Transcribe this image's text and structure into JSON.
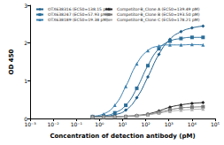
{
  "chart_data": {
    "type": "line",
    "x_label": "Concentration of detection antibody (pM)",
    "y_label": "OD 450",
    "log": "x",
    "grid": false,
    "legend": "top-left",
    "xlim": [
      0.001,
      100000
    ],
    "xticks": [
      {
        "value": 0.001,
        "label": "10⁻³"
      },
      {
        "value": 0.01,
        "label": "10⁻²"
      },
      {
        "value": 0.1,
        "label": "10⁻¹"
      },
      {
        "value": 1,
        "label": "10⁰"
      },
      {
        "value": 10,
        "label": "10¹"
      },
      {
        "value": 100,
        "label": "10²"
      },
      {
        "value": 1000,
        "label": "10³"
      },
      {
        "value": 10000,
        "label": "10⁴"
      },
      {
        "value": 100000,
        "label": "10⁵"
      }
    ],
    "ylim": [
      0,
      3
    ],
    "yticks": [
      0,
      1,
      2,
      3
    ],
    "x": [
      0.5,
      1.5,
      4.6,
      13.7,
      41,
      123,
      370,
      1111,
      3333,
      10000,
      30000
    ],
    "series": [
      {
        "name": "OTX638316 (EC50=138.15 pM)",
        "color": "#1f5f8b",
        "marker": "diamond",
        "values": [
          0.05,
          0.06,
          0.1,
          0.22,
          0.55,
          1.1,
          1.7,
          2.1,
          2.3,
          2.4,
          2.45
        ]
      },
      {
        "name": "OTX638247 (EC50=57.93 pM)",
        "color": "#2b6e99",
        "marker": "square",
        "values": [
          0.05,
          0.07,
          0.15,
          0.35,
          0.8,
          1.4,
          1.85,
          2.05,
          2.12,
          2.15,
          2.15
        ]
      },
      {
        "name": "OTX638189 (EC50=19.38 pM)",
        "color": "#3a7fae",
        "marker": "triangle",
        "values": [
          0.06,
          0.12,
          0.35,
          0.85,
          1.45,
          1.8,
          1.92,
          1.95,
          1.95,
          1.96,
          1.95
        ]
      },
      {
        "name": "Competitor-B_Clone A (EC50=139.49 pM)",
        "color": "#222222",
        "marker": "diamond",
        "values": [
          0.04,
          0.04,
          0.05,
          0.06,
          0.08,
          0.12,
          0.2,
          0.3,
          0.36,
          0.4,
          0.42
        ]
      },
      {
        "name": "Competitor-B_Clone B (EC50=193.50 pM)",
        "color": "#777777",
        "marker": "square",
        "values": [
          0.04,
          0.04,
          0.04,
          0.05,
          0.07,
          0.1,
          0.16,
          0.23,
          0.28,
          0.3,
          0.31
        ]
      },
      {
        "name": "Competitor-B_Clone C (EC50=178.21 pM)",
        "color": "#b0b0b0",
        "marker": "triangle",
        "values": [
          0.04,
          0.04,
          0.05,
          0.06,
          0.08,
          0.1,
          0.14,
          0.19,
          0.22,
          0.24,
          0.25
        ]
      }
    ]
  }
}
